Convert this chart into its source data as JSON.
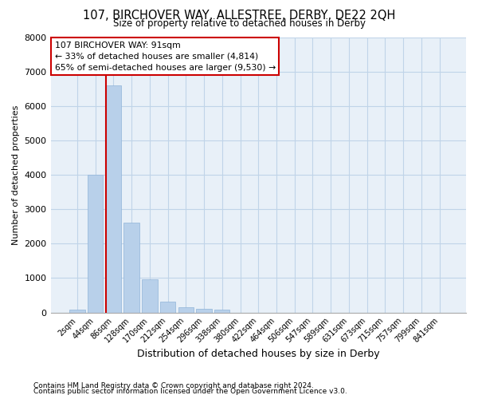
{
  "title": "107, BIRCHOVER WAY, ALLESTREE, DERBY, DE22 2QH",
  "subtitle": "Size of property relative to detached houses in Derby",
  "xlabel": "Distribution of detached houses by size in Derby",
  "ylabel": "Number of detached properties",
  "footer_line1": "Contains HM Land Registry data © Crown copyright and database right 2024.",
  "footer_line2": "Contains public sector information licensed under the Open Government Licence v3.0.",
  "bar_labels": [
    "2sqm",
    "44sqm",
    "86sqm",
    "128sqm",
    "170sqm",
    "212sqm",
    "254sqm",
    "296sqm",
    "338sqm",
    "380sqm",
    "422sqm",
    "464sqm",
    "506sqm",
    "547sqm",
    "589sqm",
    "631sqm",
    "673sqm",
    "715sqm",
    "757sqm",
    "799sqm",
    "841sqm"
  ],
  "bar_values": [
    80,
    4000,
    6600,
    2620,
    960,
    310,
    145,
    105,
    80,
    0,
    0,
    0,
    0,
    0,
    0,
    0,
    0,
    0,
    0,
    0,
    0
  ],
  "bar_color": "#b8d0ea",
  "bar_edge_color": "#90b4d8",
  "grid_color": "#c0d4e8",
  "background_color": "#e8f0f8",
  "annotation_text": "107 BIRCHOVER WAY: 91sqm\n← 33% of detached houses are smaller (4,814)\n65% of semi-detached houses are larger (9,530) →",
  "vline_color": "#cc0000",
  "vline_x": 1.57,
  "annotation_box_color": "#ffffff",
  "annotation_box_edge": "#cc0000",
  "ylim": [
    0,
    8000
  ],
  "yticks": [
    0,
    1000,
    2000,
    3000,
    4000,
    5000,
    6000,
    7000,
    8000
  ]
}
